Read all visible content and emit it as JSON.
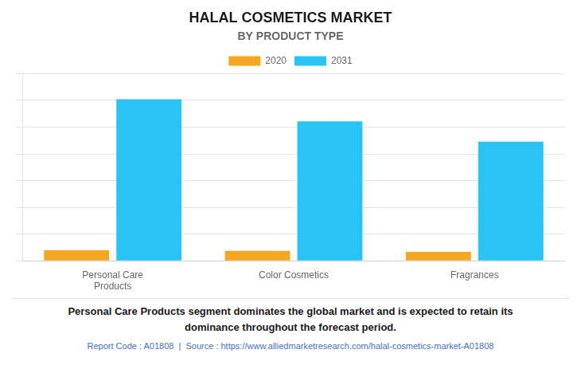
{
  "chart_data": {
    "type": "bar",
    "title": "HALAL COSMETICS MARKET",
    "subtitle": "BY PRODUCT TYPE",
    "categories": [
      "Personal Care\nProducts",
      "Color Cosmetics",
      "Fragrances"
    ],
    "series": [
      {
        "name": "2020",
        "color": "#F5A623",
        "values": [
          0.62,
          0.58,
          0.52
        ]
      },
      {
        "name": "2031",
        "color": "#29C4F5",
        "values": [
          9.5,
          8.2,
          7.0
        ]
      }
    ],
    "ylim": [
      0,
      11
    ],
    "yticks": [
      0,
      1.5714285714285714,
      3.142857142857143,
      4.714285714285714,
      6.285714285714286,
      7.857142857142857,
      9.428571428571429,
      11
    ],
    "grid": true,
    "legend": "top",
    "tick_labels": "x",
    "annotation": "Personal Care Products segment dominates the global market and is expected to retain its\ndominance throughout the forecast period.",
    "footer": "Report Code : A01808  |  Source : https://www.alliedmarketresearch.com/halal-cosmetics-market-A01808"
  }
}
